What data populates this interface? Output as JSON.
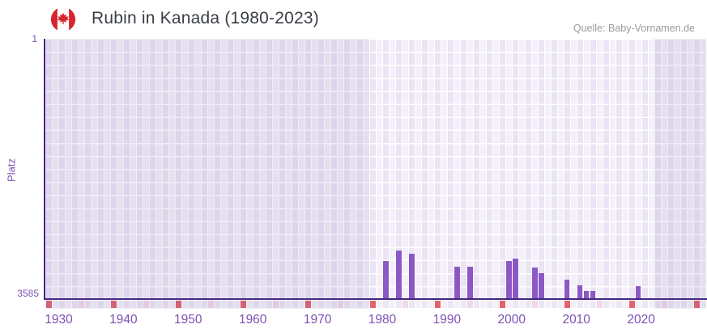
{
  "header": {
    "title": "Rubin in Kanada (1980-2023)",
    "source": "Quelle: Baby-Vornamen.de",
    "icon": "canada-flag-icon"
  },
  "chart_data": {
    "type": "bar",
    "title": "Rubin in Kanada (1980-2023)",
    "xlabel": "",
    "ylabel": "Platz",
    "y_axis": {
      "top_tick": "1",
      "bottom_tick": "3585",
      "min": 1,
      "max": 3585,
      "inverted": true
    },
    "x_axis": {
      "ticks": [
        "1930",
        "1940",
        "1950",
        "1960",
        "1970",
        "1980",
        "1990",
        "2000",
        "2010",
        "2020"
      ],
      "range": [
        1928,
        2030
      ]
    },
    "highlight_band": {
      "from_year": 1978,
      "to_year": 2022
    },
    "points": [
      {
        "year": 1980,
        "rank": 3060
      },
      {
        "year": 1982,
        "rank": 2920
      },
      {
        "year": 1984,
        "rank": 2960
      },
      {
        "year": 1991,
        "rank": 3140
      },
      {
        "year": 1993,
        "rank": 3140
      },
      {
        "year": 1999,
        "rank": 3060
      },
      {
        "year": 2000,
        "rank": 3030
      },
      {
        "year": 2003,
        "rank": 3150
      },
      {
        "year": 2004,
        "rank": 3230
      },
      {
        "year": 2008,
        "rank": 3320
      },
      {
        "year": 2010,
        "rank": 3400
      },
      {
        "year": 2011,
        "rank": 3470
      },
      {
        "year": 2012,
        "rank": 3470
      },
      {
        "year": 2019,
        "rank": 3410
      }
    ],
    "legend": false,
    "grid": true,
    "colors": {
      "bar": "#8c58c4",
      "axis_line": "#43267e",
      "axis_label": "#7c52b5",
      "flag_red": "#d8252d",
      "strip_decade": "#e0646e",
      "strip_half_decade": "#f2d9e6",
      "strip_cell_a": "#ece7f5",
      "strip_cell_b": "#f4f0fa"
    }
  }
}
